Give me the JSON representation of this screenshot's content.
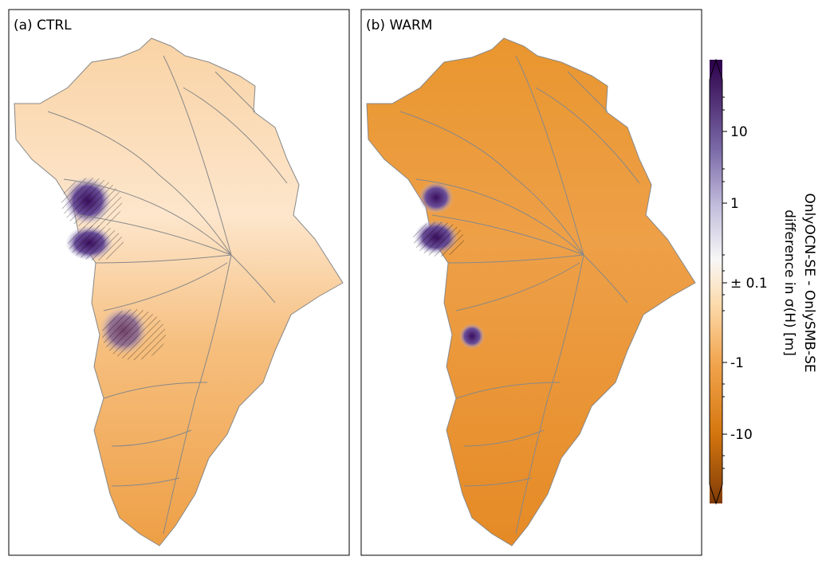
{
  "panels": [
    {
      "label": "(a) CTRL"
    },
    {
      "label": "(b) WARM"
    }
  ],
  "colorbar": {
    "ticks": [
      "10",
      "1",
      "± 0.1",
      "-1",
      "-10"
    ],
    "label": [
      "OnlyOCN-SE - OnlySMB-SE",
      "difference in σ(H) [m]"
    ]
  }
}
